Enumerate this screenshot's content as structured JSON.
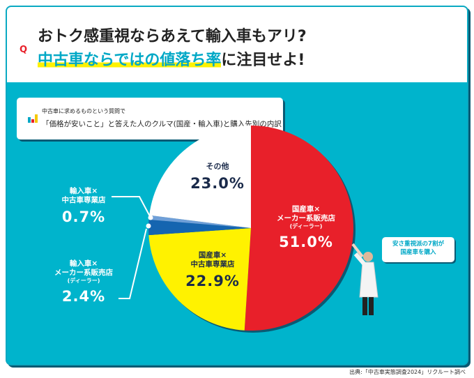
{
  "header": {
    "q_mark": "Q",
    "title_line1": "おトク感重視ならあえて輸入車もアリ?",
    "title_line2_highlight": "中古車ならではの値落ち率",
    "title_line2_rest": "に注目せよ!"
  },
  "subtitle": {
    "line1": "中古車に求めるものという質問で",
    "line2": "「価格が安いこと」と答えた人のクルマ(国産・輸入車)と購入先別の内訳"
  },
  "bubble": {
    "line1": "安さ重視派の7割が",
    "line2": "国産車を購入"
  },
  "source": "出典:「中古車実態調査2024」リクルート調べ",
  "colors": {
    "background": "#00b4cc",
    "red": "#e8202a",
    "yellow": "#fff200",
    "blue": "#1565b0",
    "light_blue": "#6f9fd8",
    "white": "#ffffff",
    "navy": "#1a2a4a"
  },
  "chart_data": {
    "type": "pie",
    "direction": "clockwise from 12 o'clock",
    "slices": [
      {
        "label_lines": [
          "国産車×",
          "メーカー系販売店",
          "(ディーラー)"
        ],
        "value": 51.0,
        "display": "51.0%",
        "color": "#e8202a"
      },
      {
        "label_lines": [
          "国産車×",
          "中古車専業店"
        ],
        "value": 22.9,
        "display": "22.9%",
        "color": "#fff200"
      },
      {
        "label_lines": [
          "輸入車×",
          "メーカー系販売店",
          "(ディーラー)"
        ],
        "value": 2.4,
        "display": "2.4%",
        "color": "#1565b0"
      },
      {
        "label_lines": [
          "輸入車×",
          "中古車専業店"
        ],
        "value": 0.7,
        "display": "0.7%",
        "color": "#6f9fd8"
      },
      {
        "label_lines": [
          "その他"
        ],
        "value": 23.0,
        "display": "23.0%",
        "color": "#ffffff"
      }
    ]
  }
}
